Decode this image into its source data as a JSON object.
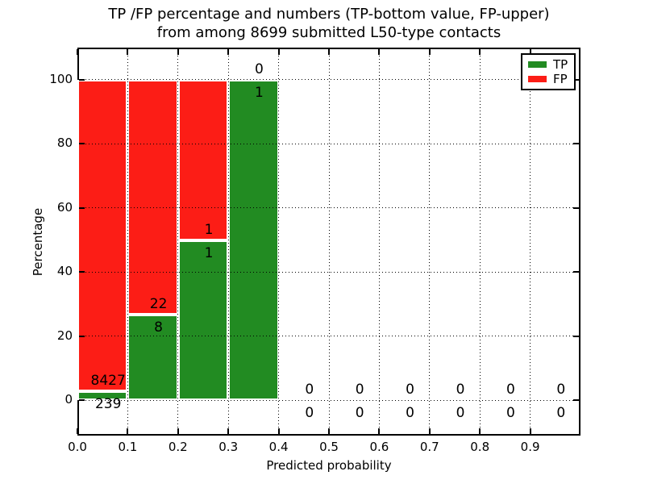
{
  "figure": {
    "title_line1": "TP /FP percentage and numbers (TP-bottom value, FP-upper)",
    "title_line2": "from among 8699 submitted L50-type contacts"
  },
  "chart_data": {
    "type": "bar",
    "stacked": true,
    "title": "TP /FP percentage and numbers (TP-bottom value, FP-upper) from among 8699 submitted L50-type contacts",
    "xlabel": "Predicted probability",
    "ylabel": "Percentage",
    "total_submitted": 8699,
    "bin_edges": [
      0.0,
      0.1,
      0.2,
      0.3,
      0.4,
      0.5,
      0.6,
      0.7,
      0.8,
      0.9,
      1.0
    ],
    "series": [
      {
        "name": "TP",
        "color": "#228b22",
        "counts": [
          239,
          8,
          1,
          1,
          0,
          0,
          0,
          0,
          0,
          0
        ],
        "percent": [
          2.758,
          26.667,
          50.0,
          100.0,
          0,
          0,
          0,
          0,
          0,
          0
        ]
      },
      {
        "name": "FP",
        "color": "#fc1d16",
        "counts": [
          8427,
          22,
          1,
          0,
          0,
          0,
          0,
          0,
          0,
          0
        ],
        "percent": [
          97.242,
          73.333,
          50.0,
          0.0,
          0,
          0,
          0,
          0,
          0,
          0
        ]
      }
    ],
    "xticks": [
      "0.0",
      "0.1",
      "0.2",
      "0.3",
      "0.4",
      "0.5",
      "0.6",
      "0.7",
      "0.8",
      "0.9"
    ],
    "yticks": [
      "0",
      "20",
      "40",
      "60",
      "80",
      "100"
    ],
    "xlim": [
      0.0,
      1.0
    ],
    "ylim": [
      -11,
      110
    ],
    "grid": true,
    "grid_style": "dotted",
    "legend": {
      "position": "upper right",
      "entries": [
        {
          "label": "TP",
          "color": "#228b22"
        },
        {
          "label": "FP",
          "color": "#fc1d16"
        }
      ]
    }
  }
}
